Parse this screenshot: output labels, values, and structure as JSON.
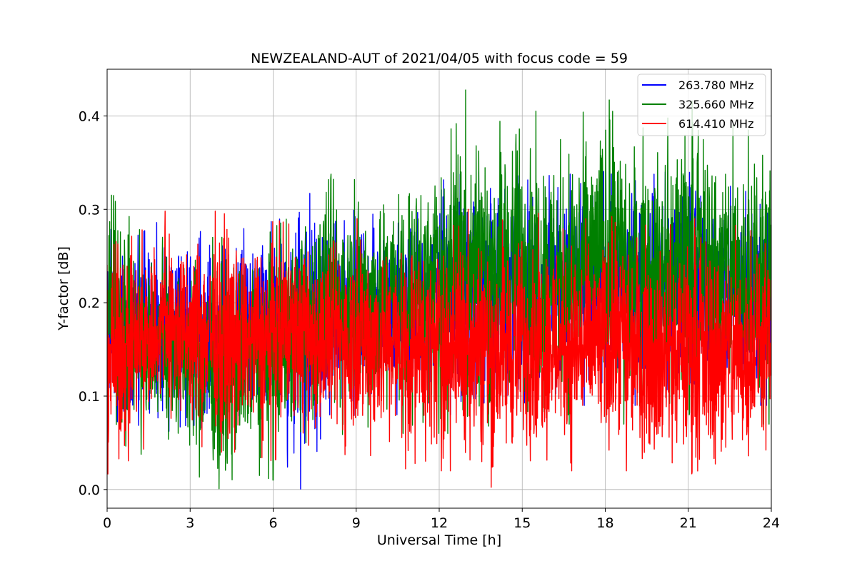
{
  "chart_data": {
    "type": "line",
    "title": "NEWZEALAND-AUT of 2021/04/05 with focus code = 59",
    "xlabel": "Universal Time [h]",
    "ylabel": "Y-factor [dB]",
    "xlim": [
      0,
      24
    ],
    "ylim": [
      -0.02,
      0.45
    ],
    "xticks": [
      0,
      3,
      6,
      9,
      12,
      15,
      18,
      21,
      24
    ],
    "yticks": [
      0.0,
      0.1,
      0.2,
      0.3,
      0.4
    ],
    "xtick_labels": [
      "0",
      "3",
      "6",
      "9",
      "12",
      "15",
      "18",
      "21",
      "24"
    ],
    "ytick_labels": [
      "0.0",
      "0.1",
      "0.2",
      "0.3",
      "0.4"
    ],
    "grid": true,
    "legend_position": "top-right",
    "series": [
      {
        "name": "263.780 MHz",
        "color": "#0000ff",
        "x": [
          0,
          1,
          2,
          3,
          4,
          5,
          6,
          7,
          8,
          9,
          10,
          11,
          12,
          13,
          14,
          15,
          16,
          17,
          18,
          19,
          20,
          21,
          22,
          23,
          24
        ],
        "high": [
          0.28,
          0.27,
          0.29,
          0.28,
          0.27,
          0.28,
          0.29,
          0.33,
          0.29,
          0.3,
          0.3,
          0.31,
          0.33,
          0.34,
          0.34,
          0.35,
          0.34,
          0.35,
          0.34,
          0.33,
          0.34,
          0.34,
          0.33,
          0.32,
          0.31
        ],
        "low": [
          0.05,
          0.07,
          0.06,
          0.07,
          0.06,
          0.06,
          0.05,
          0.0,
          0.07,
          0.08,
          0.08,
          0.08,
          0.08,
          0.08,
          0.08,
          0.09,
          0.09,
          0.09,
          0.09,
          0.09,
          0.09,
          0.09,
          0.09,
          0.09,
          0.09
        ]
      },
      {
        "name": "325.660 MHz",
        "color": "#008000",
        "x": [
          0,
          1,
          2,
          3,
          4,
          5,
          6,
          7,
          8,
          9,
          10,
          11,
          12,
          13,
          14,
          15,
          16,
          17,
          18,
          19,
          20,
          21,
          22,
          23,
          24
        ],
        "high": [
          0.34,
          0.28,
          0.27,
          0.27,
          0.27,
          0.27,
          0.28,
          0.3,
          0.36,
          0.33,
          0.35,
          0.35,
          0.38,
          0.43,
          0.4,
          0.42,
          0.39,
          0.4,
          0.42,
          0.4,
          0.39,
          0.42,
          0.39,
          0.39,
          0.36
        ],
        "low": [
          0.06,
          0.04,
          0.03,
          0.02,
          0.0,
          0.02,
          0.01,
          0.05,
          0.05,
          0.06,
          0.06,
          0.06,
          0.06,
          0.06,
          0.07,
          0.07,
          0.07,
          0.07,
          0.07,
          0.07,
          0.07,
          0.07,
          0.07,
          0.07,
          0.07
        ]
      },
      {
        "name": "614.410 MHz",
        "color": "#ff0000",
        "x": [
          0,
          1,
          2,
          3,
          4,
          5,
          6,
          7,
          8,
          9,
          10,
          11,
          12,
          13,
          14,
          15,
          16,
          17,
          18,
          19,
          20,
          21,
          22,
          23,
          24
        ],
        "high": [
          0.28,
          0.27,
          0.3,
          0.28,
          0.3,
          0.28,
          0.29,
          0.28,
          0.28,
          0.29,
          0.29,
          0.28,
          0.29,
          0.3,
          0.3,
          0.29,
          0.3,
          0.29,
          0.29,
          0.3,
          0.28,
          0.29,
          0.29,
          0.28,
          0.27
        ],
        "low": [
          0.0,
          0.04,
          0.05,
          0.05,
          0.04,
          0.04,
          0.03,
          0.05,
          0.04,
          0.03,
          0.03,
          0.02,
          0.02,
          0.02,
          0.0,
          0.02,
          0.02,
          0.02,
          0.02,
          0.02,
          0.01,
          0.01,
          0.0,
          0.01,
          0.05
        ]
      }
    ]
  }
}
